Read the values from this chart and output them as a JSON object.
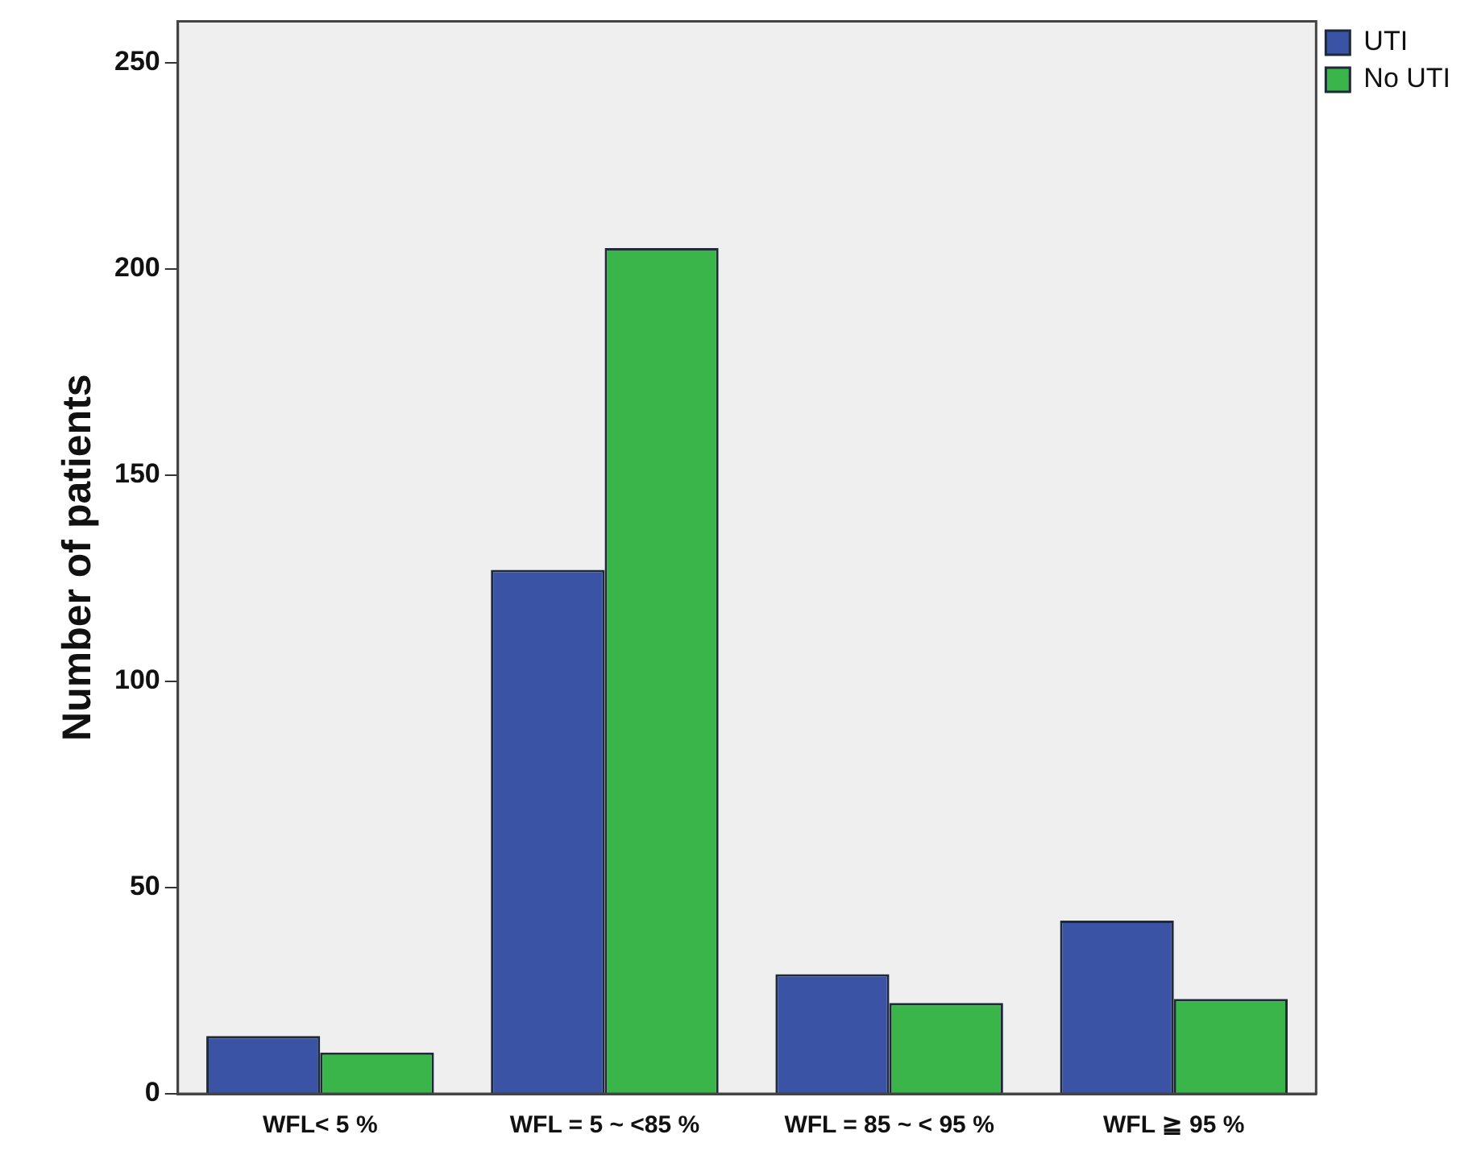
{
  "chart_data": {
    "type": "bar",
    "ylabel": "Number of patients",
    "categories": [
      "WFL< 5 %",
      "WFL = 5 ~ <85 %",
      "WFL = 85 ~ < 95 %",
      "WFL ≧ 95 %"
    ],
    "series": [
      {
        "name": "UTI",
        "color": "#3a53a4",
        "values": [
          14,
          127,
          29,
          42
        ]
      },
      {
        "name": "No UTI",
        "color": "#39b54a",
        "values": [
          10,
          205,
          22,
          23
        ]
      }
    ],
    "ylim": [
      0,
      260
    ],
    "yticks": [
      0,
      50,
      100,
      150,
      200,
      250
    ],
    "legend": "top right"
  }
}
